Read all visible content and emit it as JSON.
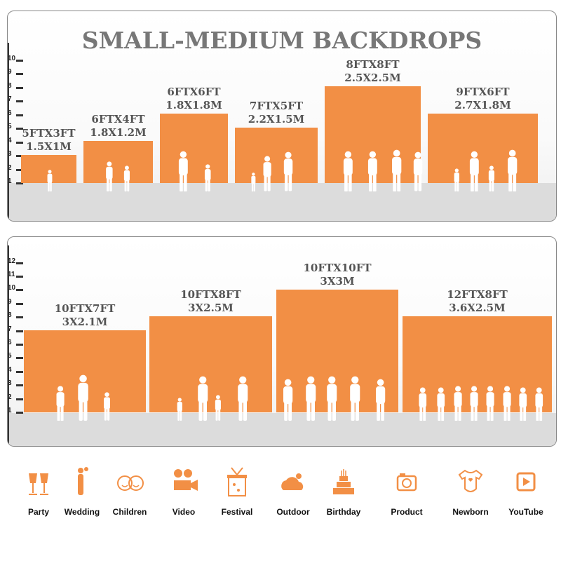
{
  "title": "SMALL-MEDIUM BACKDROPS",
  "accent_color": "#f28f45",
  "panel1": {
    "axis_ticks": [
      "1",
      "2",
      "3",
      "4",
      "5",
      "6",
      "7",
      "8",
      "9",
      "10"
    ],
    "bars": [
      {
        "size_ft": "5FTX3FT",
        "size_m": "1.5X1M",
        "height_ft": 3,
        "figures": "baby crawling"
      },
      {
        "size_ft": "6FTX4FT",
        "size_m": "1.8X1.2M",
        "height_ft": 4,
        "figures": "two children"
      },
      {
        "size_ft": "6FTX6FT",
        "size_m": "1.8X1.8M",
        "height_ft": 6,
        "figures": "adult holding child, child"
      },
      {
        "size_ft": "7FTX5FT",
        "size_m": "2.2X1.5M",
        "height_ft": 5,
        "figures": "child and two adults"
      },
      {
        "size_ft": "8FTX8FT",
        "size_m": "2.5X2.5M",
        "height_ft": 8,
        "figures": "four adults"
      },
      {
        "size_ft": "9FTX6FT",
        "size_m": "2.7X1.8M",
        "height_ft": 6,
        "figures": "family of four"
      }
    ]
  },
  "panel2": {
    "axis_ticks": [
      "1",
      "2",
      "3",
      "4",
      "5",
      "6",
      "7",
      "8",
      "9",
      "10",
      "11",
      "12"
    ],
    "bars": [
      {
        "size_ft": "10FTX7FT",
        "size_m": "3X2.1M",
        "height_ft": 7,
        "figures": "three people"
      },
      {
        "size_ft": "10FTX8FT",
        "size_m": "3X2.5M",
        "height_ft": 8,
        "figures": "family of four"
      },
      {
        "size_ft": "10FTX10FT",
        "size_m": "3X3M",
        "height_ft": 10,
        "figures": "five adults"
      },
      {
        "size_ft": "12FTX8FT",
        "size_m": "3.6X2.5M",
        "height_ft": 8,
        "figures": "group of nine"
      }
    ]
  },
  "uses": [
    {
      "label": "Party",
      "icon": "champagne-glasses-icon"
    },
    {
      "label": "Wedding",
      "icon": "wedding-couple-icon"
    },
    {
      "label": "Children",
      "icon": "children-faces-icon"
    },
    {
      "label": "Video",
      "icon": "video-camera-icon"
    },
    {
      "label": "Festival",
      "icon": "gift-box-icon"
    },
    {
      "label": "Outdoor",
      "icon": "cloud-icon"
    },
    {
      "label": "Birthday",
      "icon": "birthday-cake-icon"
    },
    {
      "label": "Product",
      "icon": "camera-icon"
    },
    {
      "label": "Newborn",
      "icon": "baby-onesie-icon"
    },
    {
      "label": "YouTube",
      "icon": "play-button-icon"
    }
  ]
}
